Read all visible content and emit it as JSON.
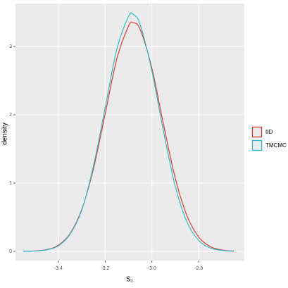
{
  "chart_data": {
    "type": "line",
    "xlabel": "S₁",
    "ylabel": "density",
    "x": [
      -3.55,
      -3.5,
      -3.45,
      -3.4,
      -3.35,
      -3.3,
      -3.25,
      -3.2,
      -3.15,
      -3.1,
      -3.08,
      -3.05,
      -3.0,
      -2.95,
      -2.9,
      -2.85,
      -2.8,
      -2.75,
      -2.7,
      -2.65
    ],
    "series": [
      {
        "name": "IID",
        "color": "#E8352C",
        "values": [
          0.001,
          0.007,
          0.026,
          0.09,
          0.26,
          0.61,
          1.21,
          2.01,
          2.82,
          3.3,
          3.35,
          3.25,
          2.68,
          1.85,
          1.07,
          0.52,
          0.21,
          0.07,
          0.02,
          0.005
        ]
      },
      {
        "name": "TMCMC",
        "color": "#22C0CA",
        "values": [
          0.001,
          0.005,
          0.023,
          0.08,
          0.25,
          0.6,
          1.25,
          2.1,
          2.96,
          3.44,
          3.47,
          3.32,
          2.64,
          1.75,
          0.95,
          0.43,
          0.16,
          0.05,
          0.013,
          0.003
        ]
      }
    ],
    "xlim": [
      -3.583,
      -2.605
    ],
    "ylim": [
      -0.134,
      3.63
    ],
    "xticks": [
      -3.4,
      -3.2,
      {
        "value": -3.0,
        "label": "-3.0"
      },
      -2.8
    ],
    "yticks": [
      0,
      1,
      2,
      3
    ],
    "grid": true,
    "legend": "right"
  }
}
